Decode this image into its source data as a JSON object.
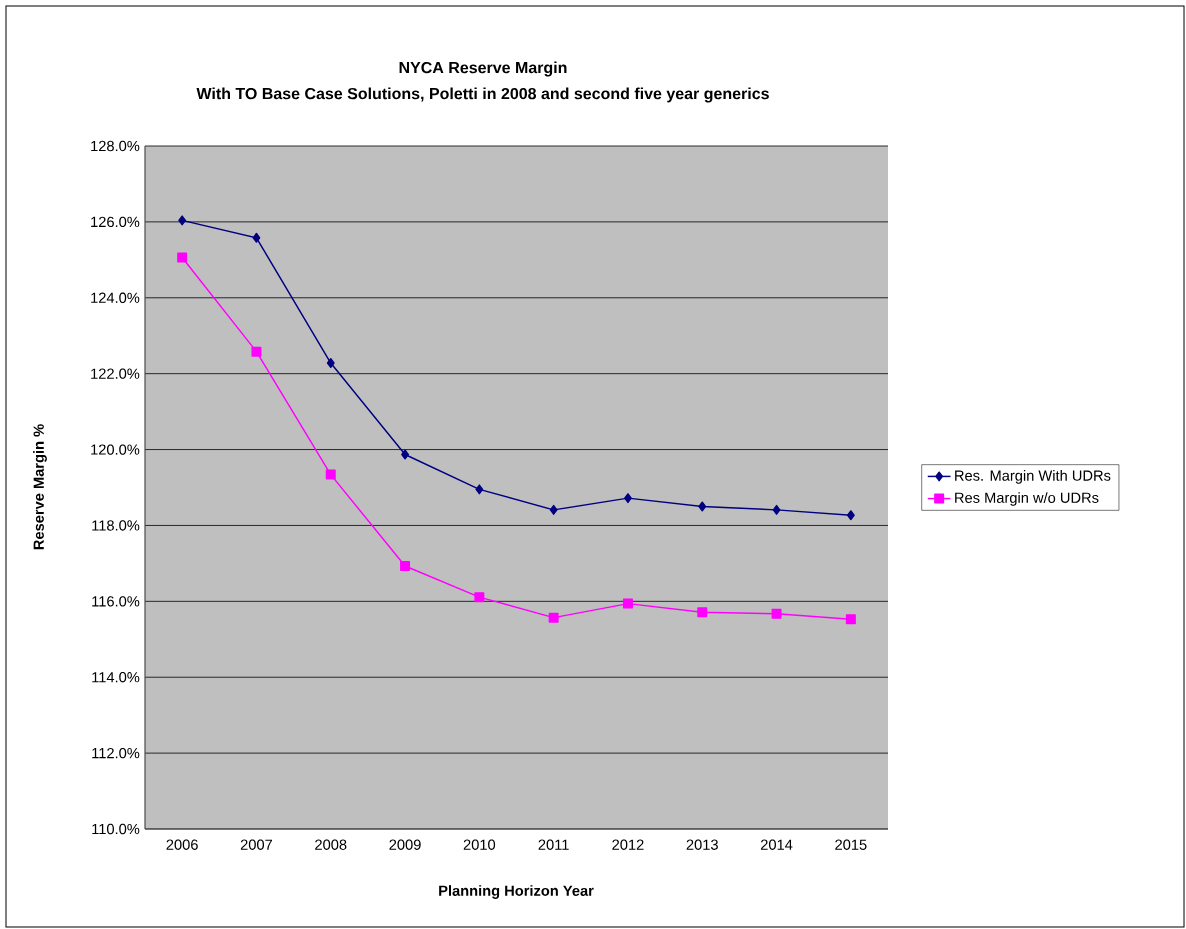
{
  "chart_data": {
    "type": "line",
    "title": "NYCA Reserve Margin",
    "subtitle": "With TO Base Case Solutions, Poletti in 2008 and second five year generics",
    "xlabel": "Planning Horizon Year",
    "ylabel": "Reserve Margin %",
    "categories": [
      "2006",
      "2007",
      "2008",
      "2009",
      "2010",
      "2011",
      "2012",
      "2013",
      "2014",
      "2015"
    ],
    "series": [
      {
        "name": "Res. Margin With UDRs",
        "color": "#000080",
        "marker": "diamond",
        "values": [
          126.04,
          125.58,
          122.28,
          119.87,
          118.95,
          118.41,
          118.72,
          118.5,
          118.41,
          118.27
        ]
      },
      {
        "name": "Res Margin w/o UDRs",
        "color": "#ff00ff",
        "marker": "square",
        "values": [
          125.06,
          122.58,
          119.34,
          116.93,
          116.11,
          115.57,
          115.94,
          115.71,
          115.67,
          115.53
        ]
      }
    ],
    "ylim": [
      110,
      128
    ],
    "yticks": [
      {
        "value": 110,
        "label": "110.0%"
      },
      {
        "value": 112,
        "label": "112.0%"
      },
      {
        "value": 114,
        "label": "114.0%"
      },
      {
        "value": 116,
        "label": "116.0%"
      },
      {
        "value": 118,
        "label": "118.0%"
      },
      {
        "value": 120,
        "label": "120.0%"
      },
      {
        "value": 122,
        "label": "122.0%"
      },
      {
        "value": 124,
        "label": "124.0%"
      },
      {
        "value": 126,
        "label": "126.0%"
      },
      {
        "value": 128,
        "label": "128.0%"
      }
    ],
    "grid": "y",
    "legend": "right",
    "line_style": "solid"
  }
}
